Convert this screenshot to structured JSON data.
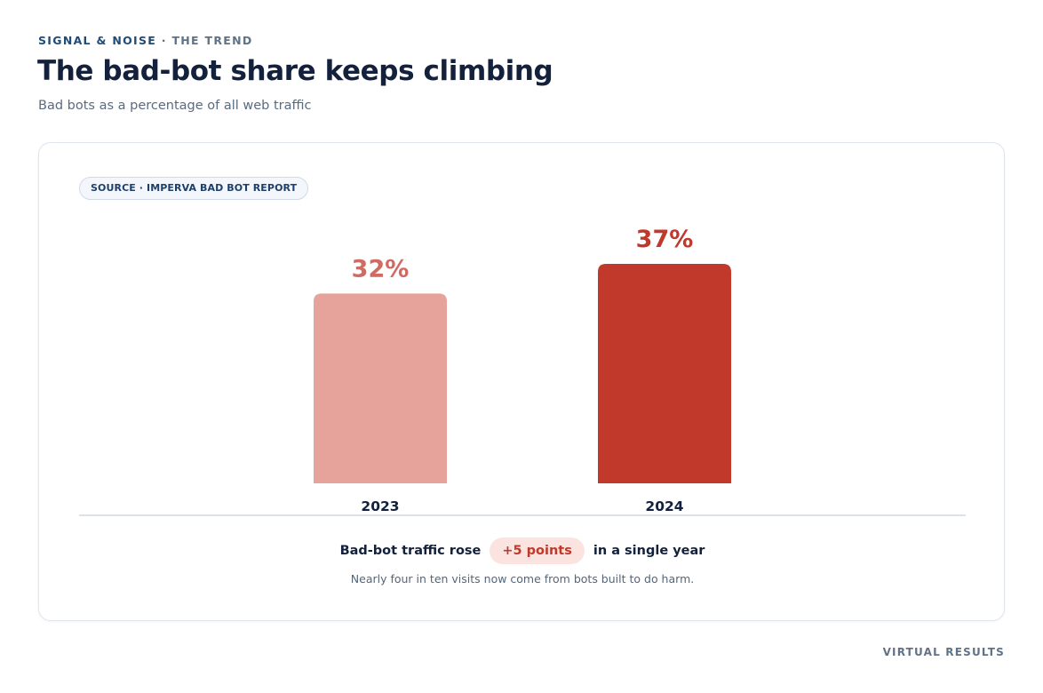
{
  "header": {
    "eyebrow": "SIGNAL & NOISE",
    "eyebrow_separator": " · ",
    "eyebrow_sub": "THE TREND",
    "title": "The bad-bot share keeps climbing",
    "subtitle": "Bad bots as a percentage of all web traffic"
  },
  "card": {
    "source_label": "SOURCE · IMPERVA BAD BOT REPORT",
    "summary": {
      "lead": "Bad-bot traffic rose",
      "delta": "+5 points",
      "tail": "in a single year"
    },
    "note": "Nearly four in ten visits now come from bots built to do harm."
  },
  "footer": {
    "mark": "VIRTUAL RESULTS"
  },
  "colors": {
    "bar_2023": "#e5a39b",
    "bar_2024": "#c0392b",
    "label_2023": "#d06b63",
    "label_2024": "#c0392b",
    "category_text": "#14213d",
    "baseline": "#cfd9e2"
  },
  "chart_data": {
    "type": "bar",
    "categories": [
      "2023",
      "2024"
    ],
    "values": [
      32,
      37
    ],
    "value_labels": [
      "32%",
      "37%"
    ],
    "unit": "%",
    "title": "",
    "xlabel": "",
    "ylabel": "",
    "ylim": [
      0,
      37
    ],
    "grid": false
  }
}
